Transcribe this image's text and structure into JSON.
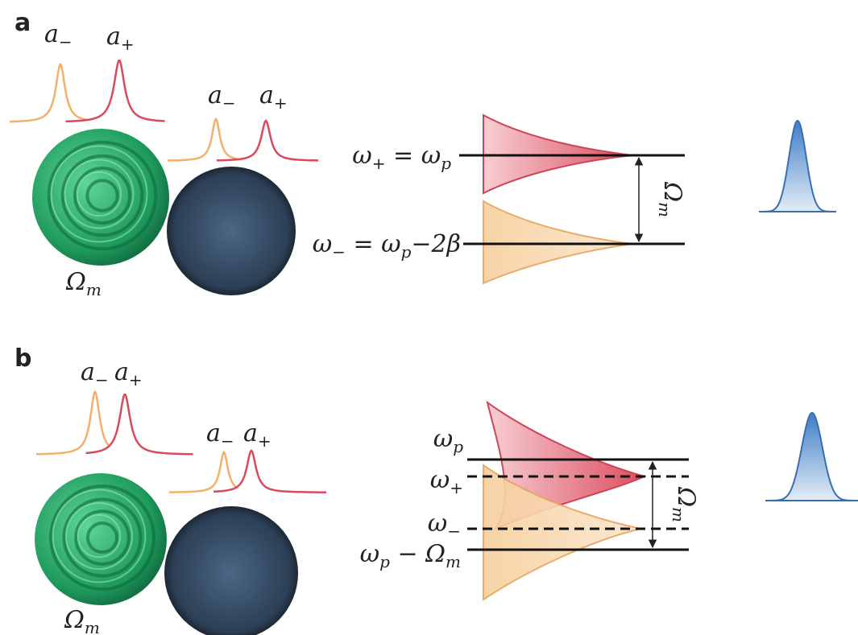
{
  "panels": [
    {
      "label": "a",
      "spectra": [
        [
          [
            {
              "text": "a"
            },
            {
              "text": "−",
              "sub": true
            }
          ],
          [
            {
              "text": "a"
            },
            {
              "text": "+",
              "sub": true
            }
          ]
        ],
        [
          [
            {
              "text": "a"
            },
            {
              "text": "−",
              "sub": true
            }
          ],
          [
            {
              "text": "a"
            },
            {
              "text": "+",
              "sub": true
            }
          ]
        ]
      ],
      "resonator": [
        {
          "text": "Ω"
        },
        {
          "text": "m",
          "sub": true
        }
      ],
      "levels": [
        [
          {
            "text": "ω"
          },
          {
            "text": "+",
            "sub": true
          },
          {
            "text": " = ω"
          },
          {
            "text": "p",
            "sub": true
          }
        ],
        [
          {
            "text": "ω"
          },
          {
            "text": "−",
            "sub": true
          },
          {
            "text": " = ω"
          },
          {
            "text": "p",
            "sub": true
          },
          {
            "text": "−2β"
          }
        ]
      ],
      "splitting": [
        {
          "text": "Ω"
        },
        {
          "text": "m",
          "sub": true
        }
      ]
    },
    {
      "label": "b",
      "spectra": [
        [
          [
            {
              "text": "a"
            },
            {
              "text": "−",
              "sub": true
            }
          ],
          [
            {
              "text": "a"
            },
            {
              "text": "+",
              "sub": true
            }
          ]
        ],
        [
          [
            {
              "text": "a"
            },
            {
              "text": "−",
              "sub": true
            }
          ],
          [
            {
              "text": "a"
            },
            {
              "text": "+",
              "sub": true
            }
          ]
        ]
      ],
      "resonator": [
        {
          "text": "Ω"
        },
        {
          "text": "m",
          "sub": true
        }
      ],
      "levels": [
        [
          {
            "text": "ω"
          },
          {
            "text": "p",
            "sub": true
          }
        ],
        [
          {
            "text": "ω"
          },
          {
            "text": "+",
            "sub": true
          }
        ],
        [
          {
            "text": "ω"
          },
          {
            "text": "−",
            "sub": true
          }
        ],
        [
          {
            "text": "ω"
          },
          {
            "text": "p",
            "sub": true
          },
          {
            "text": " − Ω"
          },
          {
            "text": "m",
            "sub": true
          }
        ]
      ],
      "splitting": [
        {
          "text": "Ω"
        },
        {
          "text": "m",
          "sub": true
        }
      ]
    }
  ]
}
